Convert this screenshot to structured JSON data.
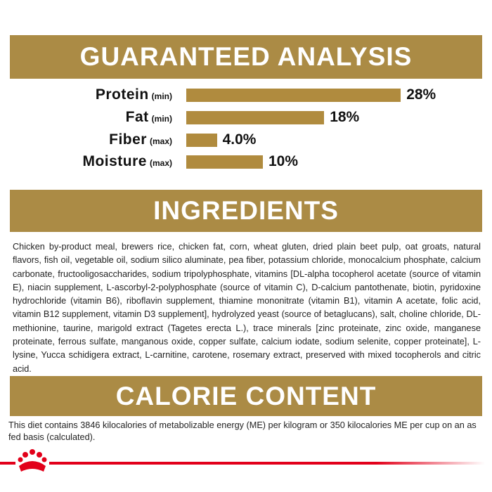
{
  "chart_data": {
    "type": "bar",
    "title": "GUARANTEED ANALYSIS",
    "categories": [
      "Protein",
      "Fat",
      "Fiber",
      "Moisture"
    ],
    "qualifiers": [
      "(min)",
      "(min)",
      "(max)",
      "(max)"
    ],
    "values": [
      28,
      18,
      4.0,
      10
    ],
    "value_labels": [
      "28%",
      "18%",
      "4.0%",
      "10%"
    ],
    "color": "#b08b3e"
  },
  "ingredients": {
    "title": "INGREDIENTS",
    "text": "Chicken by-product meal, brewers rice, chicken fat, corn, wheat gluten, dried plain beet pulp, oat groats, natural flavors, fish oil, vegetable oil, sodium silico aluminate, pea fiber, potassium chloride, monocalcium phosphate, calcium carbonate, fructooligosaccharides, sodium tripolyphosphate, vitamins [DL-alpha tocopherol acetate (source of vitamin E), niacin supplement, L-ascorbyl-2-polyphosphate (source of vitamin C), D-calcium pantothenate, biotin, pyridoxine hydrochloride (vitamin B6), riboflavin supplement, thiamine mononitrate (vitamin B1), vitamin A acetate, folic acid, vitamin B12 supplement, vitamin D3 supplement], hydrolyzed yeast (source of betaglucans), salt, choline chloride, DL-methionine, taurine, marigold extract (Tagetes erecta L.), trace minerals [zinc proteinate, zinc oxide, manganese proteinate, ferrous sulfate, manganous oxide, copper sulfate, calcium iodate, sodium selenite, copper proteinate], L-lysine, Yucca schidigera extract, L-carnitine, carotene, rosemary extract, preserved with mixed tocopherols and citric acid."
  },
  "calorie_content": {
    "title": "CALORIE CONTENT",
    "text": "This diet contains 3846 kilocalories of metabolizable energy (ME) per kilogram or 350 kilocalories ME per cup on an as fed basis (calculated)."
  }
}
